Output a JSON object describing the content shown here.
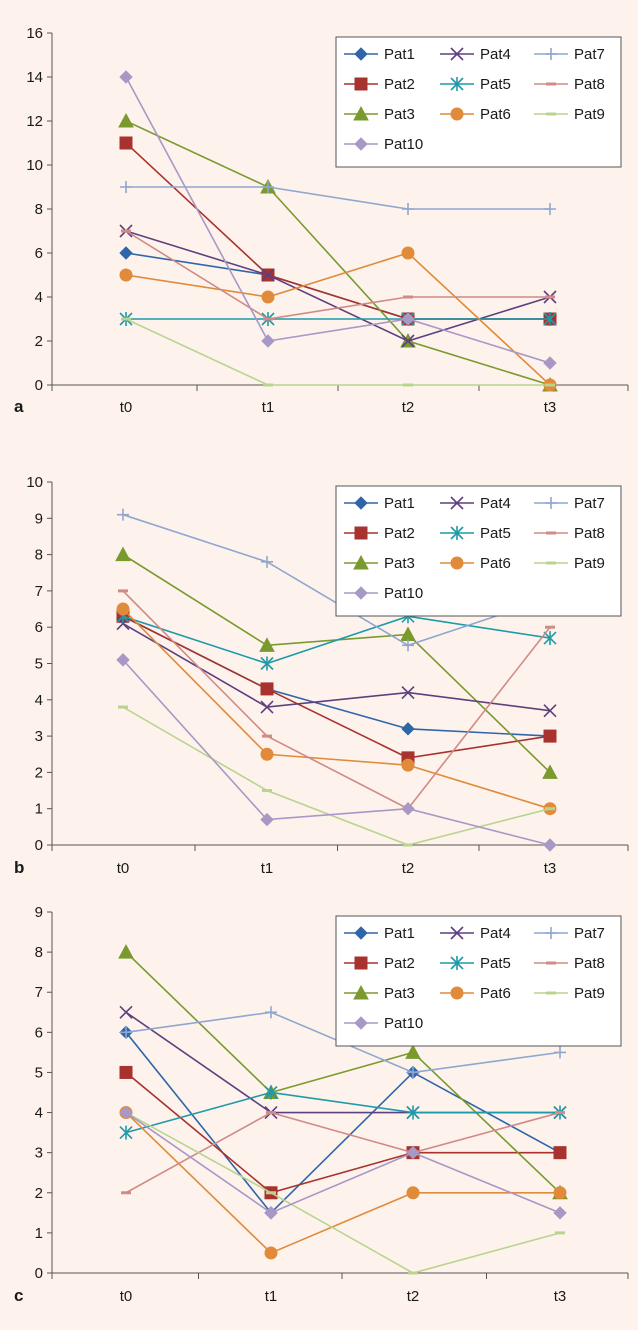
{
  "series_styles": [
    {
      "name": "Pat1",
      "color": "#2f66a8",
      "marker": "diamond"
    },
    {
      "name": "Pat2",
      "color": "#a8322e",
      "marker": "square"
    },
    {
      "name": "Pat3",
      "color": "#7a9a2e",
      "marker": "triangle"
    },
    {
      "name": "Pat4",
      "color": "#5f3f7f",
      "marker": "x"
    },
    {
      "name": "Pat5",
      "color": "#1f9aa8",
      "marker": "star"
    },
    {
      "name": "Pat6",
      "color": "#e08a3a",
      "marker": "circle"
    },
    {
      "name": "Pat7",
      "color": "#8ea6d0",
      "marker": "plus"
    },
    {
      "name": "Pat8",
      "color": "#d28a86",
      "marker": "dash"
    },
    {
      "name": "Pat9",
      "color": "#b8d48e",
      "marker": "dash"
    },
    {
      "name": "Pat10",
      "color": "#a898c6",
      "marker": "diamond"
    }
  ],
  "chart_data": [
    {
      "type": "line",
      "panel_label": "a",
      "categories": [
        "t0",
        "t1",
        "t2",
        "t3"
      ],
      "ylim": [
        0,
        16
      ],
      "yticks": [
        "0",
        "2",
        "4",
        "6",
        "8",
        "10",
        "12",
        "14",
        "16"
      ],
      "grid": false,
      "legend_position": "top-right",
      "series": [
        {
          "name": "Pat1",
          "values": [
            6,
            5,
            3,
            3
          ]
        },
        {
          "name": "Pat2",
          "values": [
            11,
            5,
            3,
            3
          ]
        },
        {
          "name": "Pat3",
          "values": [
            12,
            9,
            2,
            0
          ]
        },
        {
          "name": "Pat4",
          "values": [
            7,
            5,
            2,
            4
          ]
        },
        {
          "name": "Pat5",
          "values": [
            3,
            3,
            3,
            3
          ]
        },
        {
          "name": "Pat6",
          "values": [
            5,
            4,
            6,
            0
          ]
        },
        {
          "name": "Pat7",
          "values": [
            9,
            9,
            8,
            8
          ]
        },
        {
          "name": "Pat8",
          "values": [
            7,
            3,
            4,
            4
          ]
        },
        {
          "name": "Pat9",
          "values": [
            3,
            0,
            0,
            0
          ]
        },
        {
          "name": "Pat10",
          "values": [
            14,
            2,
            3,
            1
          ]
        }
      ]
    },
    {
      "type": "line",
      "panel_label": "b",
      "categories": [
        "t0",
        "t1",
        "t2",
        "t3"
      ],
      "ylim": [
        0,
        10
      ],
      "yticks": [
        "0",
        "1",
        "2",
        "3",
        "4",
        "5",
        "6",
        "7",
        "8",
        "9",
        "10"
      ],
      "grid": false,
      "legend_position": "top-right",
      "series": [
        {
          "name": "Pat1",
          "values": [
            6.3,
            4.3,
            3.2,
            3.0
          ]
        },
        {
          "name": "Pat2",
          "values": [
            6.3,
            4.3,
            2.4,
            3.0
          ]
        },
        {
          "name": "Pat3",
          "values": [
            8.0,
            5.5,
            5.8,
            2.0
          ]
        },
        {
          "name": "Pat4",
          "values": [
            6.1,
            3.8,
            4.2,
            3.7
          ]
        },
        {
          "name": "Pat5",
          "values": [
            6.3,
            5.0,
            6.3,
            5.7
          ]
        },
        {
          "name": "Pat6",
          "values": [
            6.5,
            2.5,
            2.2,
            1.0
          ]
        },
        {
          "name": "Pat7",
          "values": [
            9.1,
            7.8,
            5.5,
            6.8
          ]
        },
        {
          "name": "Pat8",
          "values": [
            7.0,
            3.0,
            1.0,
            6.0
          ]
        },
        {
          "name": "Pat9",
          "values": [
            3.8,
            1.5,
            0.0,
            1.0
          ]
        },
        {
          "name": "Pat10",
          "values": [
            5.1,
            0.7,
            1.0,
            0.0
          ]
        }
      ]
    },
    {
      "type": "line",
      "panel_label": "c",
      "categories": [
        "t0",
        "t1",
        "t2",
        "t3"
      ],
      "ylim": [
        0,
        9
      ],
      "yticks": [
        "0",
        "1",
        "2",
        "3",
        "4",
        "5",
        "6",
        "7",
        "8",
        "9"
      ],
      "grid": false,
      "legend_position": "top-right",
      "series": [
        {
          "name": "Pat1",
          "values": [
            6.0,
            1.5,
            5.0,
            3.0
          ]
        },
        {
          "name": "Pat2",
          "values": [
            5.0,
            2.0,
            3.0,
            3.0
          ]
        },
        {
          "name": "Pat3",
          "values": [
            8.0,
            4.5,
            5.5,
            2.0
          ]
        },
        {
          "name": "Pat4",
          "values": [
            6.5,
            4.0,
            4.0,
            4.0
          ]
        },
        {
          "name": "Pat5",
          "values": [
            3.5,
            4.5,
            4.0,
            4.0
          ]
        },
        {
          "name": "Pat6",
          "values": [
            4.0,
            0.5,
            2.0,
            2.0
          ]
        },
        {
          "name": "Pat7",
          "values": [
            6.0,
            6.5,
            5.0,
            5.5
          ]
        },
        {
          "name": "Pat8",
          "values": [
            2.0,
            4.0,
            3.0,
            4.0
          ]
        },
        {
          "name": "Pat9",
          "values": [
            4.0,
            2.0,
            0.0,
            1.0
          ]
        },
        {
          "name": "Pat10",
          "values": [
            4.0,
            1.5,
            3.0,
            1.5
          ]
        }
      ]
    }
  ]
}
